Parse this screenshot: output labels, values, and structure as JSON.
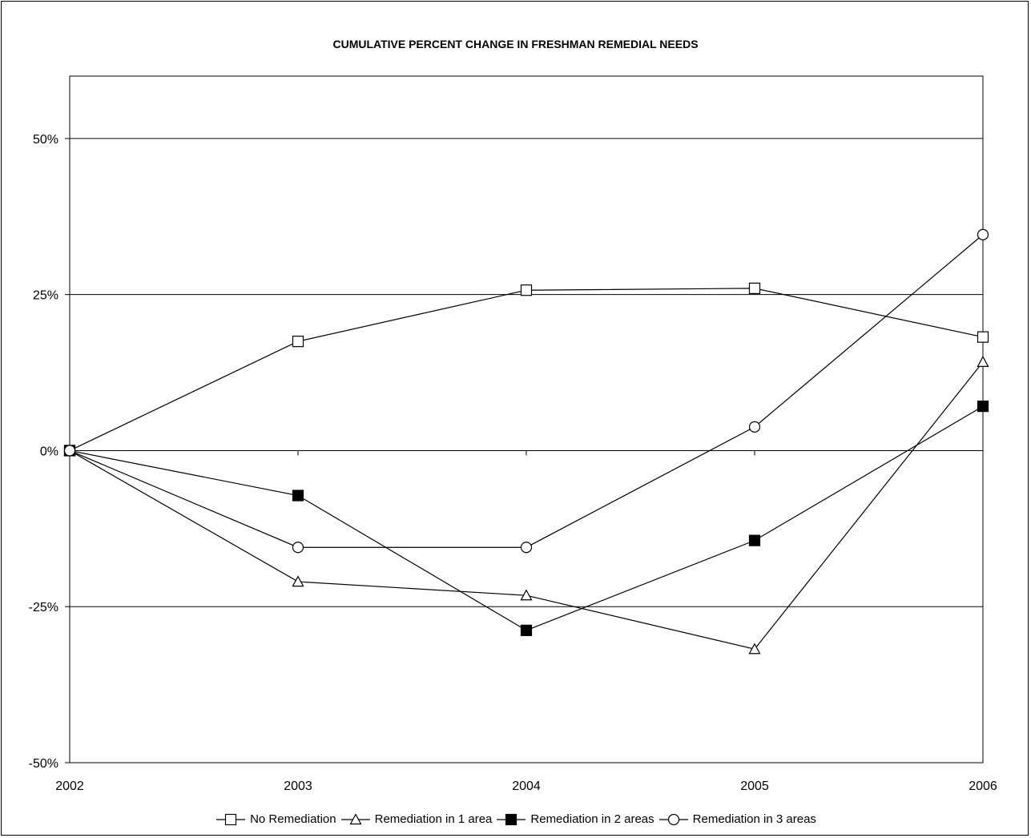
{
  "chart_data": {
    "type": "line",
    "title": "CUMULATIVE PERCENT CHANGE IN FRESHMAN REMEDIAL NEEDS",
    "x": [
      "2002",
      "2003",
      "2004",
      "2005",
      "2006"
    ],
    "ylim": [
      -50,
      60
    ],
    "yticks": [
      -50,
      -25,
      0,
      25,
      50
    ],
    "ytick_labels": [
      "-50%",
      "-25%",
      "0%",
      "25%",
      "50%"
    ],
    "grid": "horizontal",
    "legend_position": "bottom",
    "series": [
      {
        "name": "No Remediation",
        "marker": "open-square",
        "values": [
          0,
          17.5,
          25.7,
          26,
          18.2
        ]
      },
      {
        "name": "Remediation in 1 area",
        "marker": "open-triangle",
        "values": [
          0,
          -21,
          -23.2,
          -31.8,
          14.2
        ]
      },
      {
        "name": "Remediation in 2 areas",
        "marker": "filled-square",
        "values": [
          0,
          -7.2,
          -28.8,
          -14.4,
          7.1
        ]
      },
      {
        "name": "Remediation in 3 areas",
        "marker": "open-circle",
        "values": [
          0,
          -15.5,
          -15.5,
          3.8,
          34.6
        ]
      }
    ]
  }
}
